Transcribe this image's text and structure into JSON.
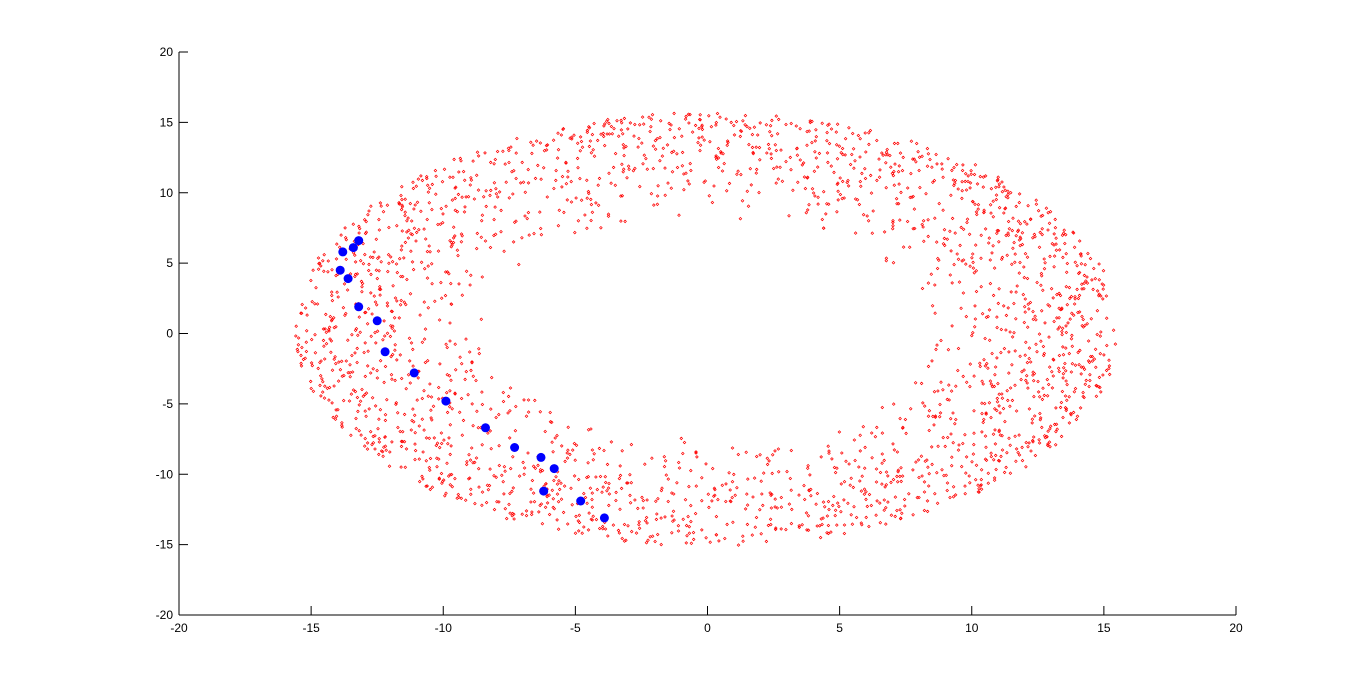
{
  "figure": {
    "background": "#ffffff"
  },
  "chart_data": {
    "type": "scatter",
    "title": "",
    "xlabel": "",
    "ylabel": "",
    "xlim": [
      -20,
      20
    ],
    "ylim": [
      -20,
      20
    ],
    "xticks": [
      -20,
      -15,
      -10,
      -5,
      0,
      5,
      10,
      15,
      20
    ],
    "yticks": [
      -20,
      -15,
      -10,
      -5,
      0,
      5,
      10,
      15,
      20
    ],
    "grid": false,
    "legend": "none",
    "series": [
      {
        "marker": "small diamond",
        "color": "#ff0000",
        "distribution": {
          "shape": "elliptical annulus",
          "center": [
            0.0,
            0.3
          ],
          "outer_radii": [
            15.6,
            15.4
          ],
          "inner_radii": [
            8.3,
            7.6
          ],
          "count": 2400
        }
      },
      {
        "marker": "filled circle",
        "color": "#0000ff",
        "x": [
          -13.2,
          -13.4,
          -13.8,
          -13.9,
          -13.6,
          -13.2,
          -12.5,
          -12.2,
          -11.1,
          -9.9,
          -8.4,
          -7.3,
          -6.3,
          -5.8,
          -6.2,
          -4.8,
          -3.9
        ],
        "y": [
          6.6,
          6.1,
          5.8,
          4.5,
          3.9,
          1.9,
          0.9,
          -1.3,
          -2.8,
          -4.8,
          -6.7,
          -8.1,
          -8.8,
          -9.6,
          -11.2,
          -11.9,
          -13.1
        ]
      }
    ]
  }
}
